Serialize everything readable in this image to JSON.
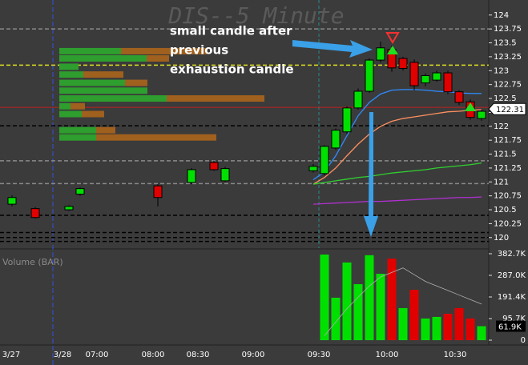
{
  "chart_data": [
    {
      "type": "candlestick",
      "title": "DIS--5 Minute",
      "annotation": [
        "small candle after",
        "previous",
        "exhaustion candle"
      ],
      "x": [
        "15:50",
        "15:55",
        "06:40",
        "06:45",
        "08:05",
        "08:35",
        "08:45",
        "08:50",
        "09:25",
        "09:30",
        "09:35",
        "09:40",
        "09:45",
        "09:50",
        "09:55",
        "10:00",
        "10:05",
        "10:10",
        "10:15",
        "10:20",
        "10:25",
        "10:30",
        "10:35",
        "10:40"
      ],
      "open": [
        120.6,
        120.52,
        120.5,
        120.78,
        120.93,
        120.99,
        121.35,
        121.02,
        121.2,
        121.15,
        121.61,
        121.9,
        122.33,
        122.63,
        123.19,
        123.38,
        123.22,
        123.15,
        122.78,
        122.83,
        122.96,
        122.62,
        122.44,
        122.14
      ],
      "high": [
        120.76,
        120.55,
        120.58,
        120.9,
        120.96,
        121.25,
        121.38,
        121.27,
        121.32,
        121.66,
        121.96,
        122.36,
        122.68,
        123.22,
        123.52,
        123.45,
        123.25,
        123.2,
        122.95,
        123.0,
        123.0,
        122.65,
        122.48,
        122.3
      ],
      "low": [
        120.56,
        120.34,
        120.48,
        120.75,
        120.56,
        120.96,
        121.2,
        121.0,
        121.17,
        121.12,
        121.58,
        121.86,
        122.3,
        122.6,
        123.15,
        122.98,
        123.0,
        122.65,
        122.72,
        122.8,
        122.58,
        122.38,
        122.12,
        122.1
      ],
      "close": [
        120.72,
        120.36,
        120.56,
        120.88,
        120.72,
        121.22,
        121.22,
        121.24,
        121.28,
        121.64,
        121.93,
        122.33,
        122.63,
        123.19,
        123.41,
        123.05,
        123.04,
        122.73,
        122.91,
        122.96,
        122.62,
        122.43,
        122.16,
        122.27
      ],
      "up_color": "#00e000",
      "down_color": "#e00000",
      "xtick_labels": [
        "3/27",
        "3/28",
        "07:00",
        "08:00",
        "08:30",
        "09:00",
        "09:30",
        "10:00",
        "10:30"
      ],
      "ylim": [
        119.81,
        124.27
      ],
      "yticks": [
        120,
        120.25,
        120.5,
        120.75,
        121,
        121.25,
        121.5,
        121.75,
        122,
        122.25,
        122.5,
        122.75,
        123,
        123.25,
        123.5,
        123.75,
        124
      ],
      "current_value": 122.31,
      "overlays": [
        {
          "color": "#2f8cff",
          "x": [
            "09:25",
            "09:30",
            "09:35",
            "09:40",
            "09:45",
            "09:50",
            "09:55",
            "10:00",
            "10:05",
            "10:10",
            "10:15",
            "10:20",
            "10:25",
            "10:30",
            "10:35",
            "10:40"
          ],
          "values": [
            121.04,
            121.18,
            121.47,
            121.83,
            122.19,
            122.43,
            122.58,
            122.65,
            122.66,
            122.66,
            122.65,
            122.63,
            122.62,
            122.6,
            122.59,
            122.59
          ]
        },
        {
          "color": "#ff9060",
          "x": [
            "09:25",
            "09:30",
            "09:35",
            "09:40",
            "09:45",
            "09:50",
            "09:55",
            "10:00",
            "10:05",
            "10:10",
            "10:15",
            "10:20",
            "10:25",
            "10:30",
            "10:35",
            "10:40"
          ],
          "values": [
            120.96,
            121.08,
            121.25,
            121.47,
            121.68,
            121.86,
            122.0,
            122.09,
            122.14,
            122.17,
            122.2,
            122.23,
            122.26,
            122.27,
            122.29,
            122.3
          ]
        },
        {
          "color": "#30d030",
          "x": [
            "09:25",
            "09:30",
            "09:35",
            "09:40",
            "09:45",
            "09:50",
            "09:55",
            "10:00",
            "10:05",
            "10:10",
            "10:15",
            "10:20",
            "10:25",
            "10:30",
            "10:35",
            "10:40"
          ],
          "values": [
            120.96,
            120.99,
            121.02,
            121.05,
            121.08,
            121.1,
            121.13,
            121.16,
            121.18,
            121.2,
            121.22,
            121.25,
            121.27,
            121.29,
            121.31,
            121.34
          ]
        },
        {
          "color": "#b030d0",
          "x": [
            "09:25",
            "09:30",
            "09:35",
            "09:40",
            "09:45",
            "09:50",
            "09:55",
            "10:00",
            "10:05",
            "10:10",
            "10:15",
            "10:20",
            "10:25",
            "10:30",
            "10:35",
            "10:40"
          ],
          "values": [
            120.6,
            120.61,
            120.62,
            120.63,
            120.64,
            120.65,
            120.65,
            120.66,
            120.67,
            120.68,
            120.69,
            120.7,
            120.71,
            120.72,
            120.72,
            120.73
          ]
        }
      ],
      "levels": [
        {
          "value": 123.75,
          "color": "#8a8a8a",
          "dash": true
        },
        {
          "value": 123.1,
          "color": "#e0e020",
          "dash": true
        },
        {
          "value": 122.34,
          "color": "#c02020",
          "dash": false
        },
        {
          "value": 122.01,
          "color": "#000000",
          "dash": true
        },
        {
          "value": 121.38,
          "color": "#8a8a8a",
          "dash": true
        },
        {
          "value": 120.97,
          "color": "#8a8a8a",
          "dash": true
        },
        {
          "value": 120.4,
          "color": "#000000",
          "dash": true
        },
        {
          "value": 120.09,
          "color": "#000000",
          "dash": true
        },
        {
          "value": 120.0,
          "color": "#000000",
          "dash": true
        },
        {
          "value": 119.93,
          "color": "#000000",
          "dash": true
        }
      ],
      "volume_profile": {
        "buy_color": "#2e9e2e",
        "sell_color": "#a0601e",
        "prices": [
          123.35,
          123.22,
          123.07,
          122.93,
          122.78,
          122.64,
          122.5,
          122.36,
          122.22,
          121.93,
          121.8
        ],
        "buy": [
          77,
          109,
          24,
          30,
          82,
          110,
          134,
          14,
          28,
          46,
          46
        ],
        "sell": [
          107,
          28,
          0,
          50,
          28,
          0,
          122,
          18,
          28,
          24,
          150
        ]
      }
    },
    {
      "type": "bar",
      "title": "Volume (BAR)",
      "categories": [
        "09:30",
        "09:35",
        "09:40",
        "09:45",
        "09:50",
        "09:55",
        "10:00",
        "10:05",
        "10:10",
        "10:15",
        "10:20",
        "10:25",
        "10:30",
        "10:35",
        "10:40"
      ],
      "values": [
        379000,
        188000,
        344000,
        248000,
        376000,
        294000,
        361000,
        142000,
        223000,
        96000,
        103000,
        117000,
        142000,
        96000,
        61900
      ],
      "colors": [
        "#00e000",
        "#00e000",
        "#00e000",
        "#00e000",
        "#00e000",
        "#00e000",
        "#e00000",
        "#00e000",
        "#e00000",
        "#00e000",
        "#00e000",
        "#e00000",
        "#e00000",
        "#e00000",
        "#00e000"
      ],
      "avg": {
        "color": "#b0b0b0",
        "values": [
          20000,
          80000,
          140000,
          190000,
          240000,
          280000,
          300000,
          320000,
          290000,
          260000,
          240000,
          220000,
          200000,
          180000,
          160000
        ]
      },
      "ylim": [
        0,
        382700
      ],
      "yticks": [
        0,
        {
          "value": 95700,
          "label": "95.7K"
        },
        {
          "value": 191400,
          "label": "191.4K"
        },
        {
          "value": 287000,
          "label": "287.0K"
        },
        {
          "value": 382700,
          "label": "382.7K"
        }
      ],
      "current_value": {
        "value": 61900,
        "label": "61.9K"
      }
    }
  ]
}
